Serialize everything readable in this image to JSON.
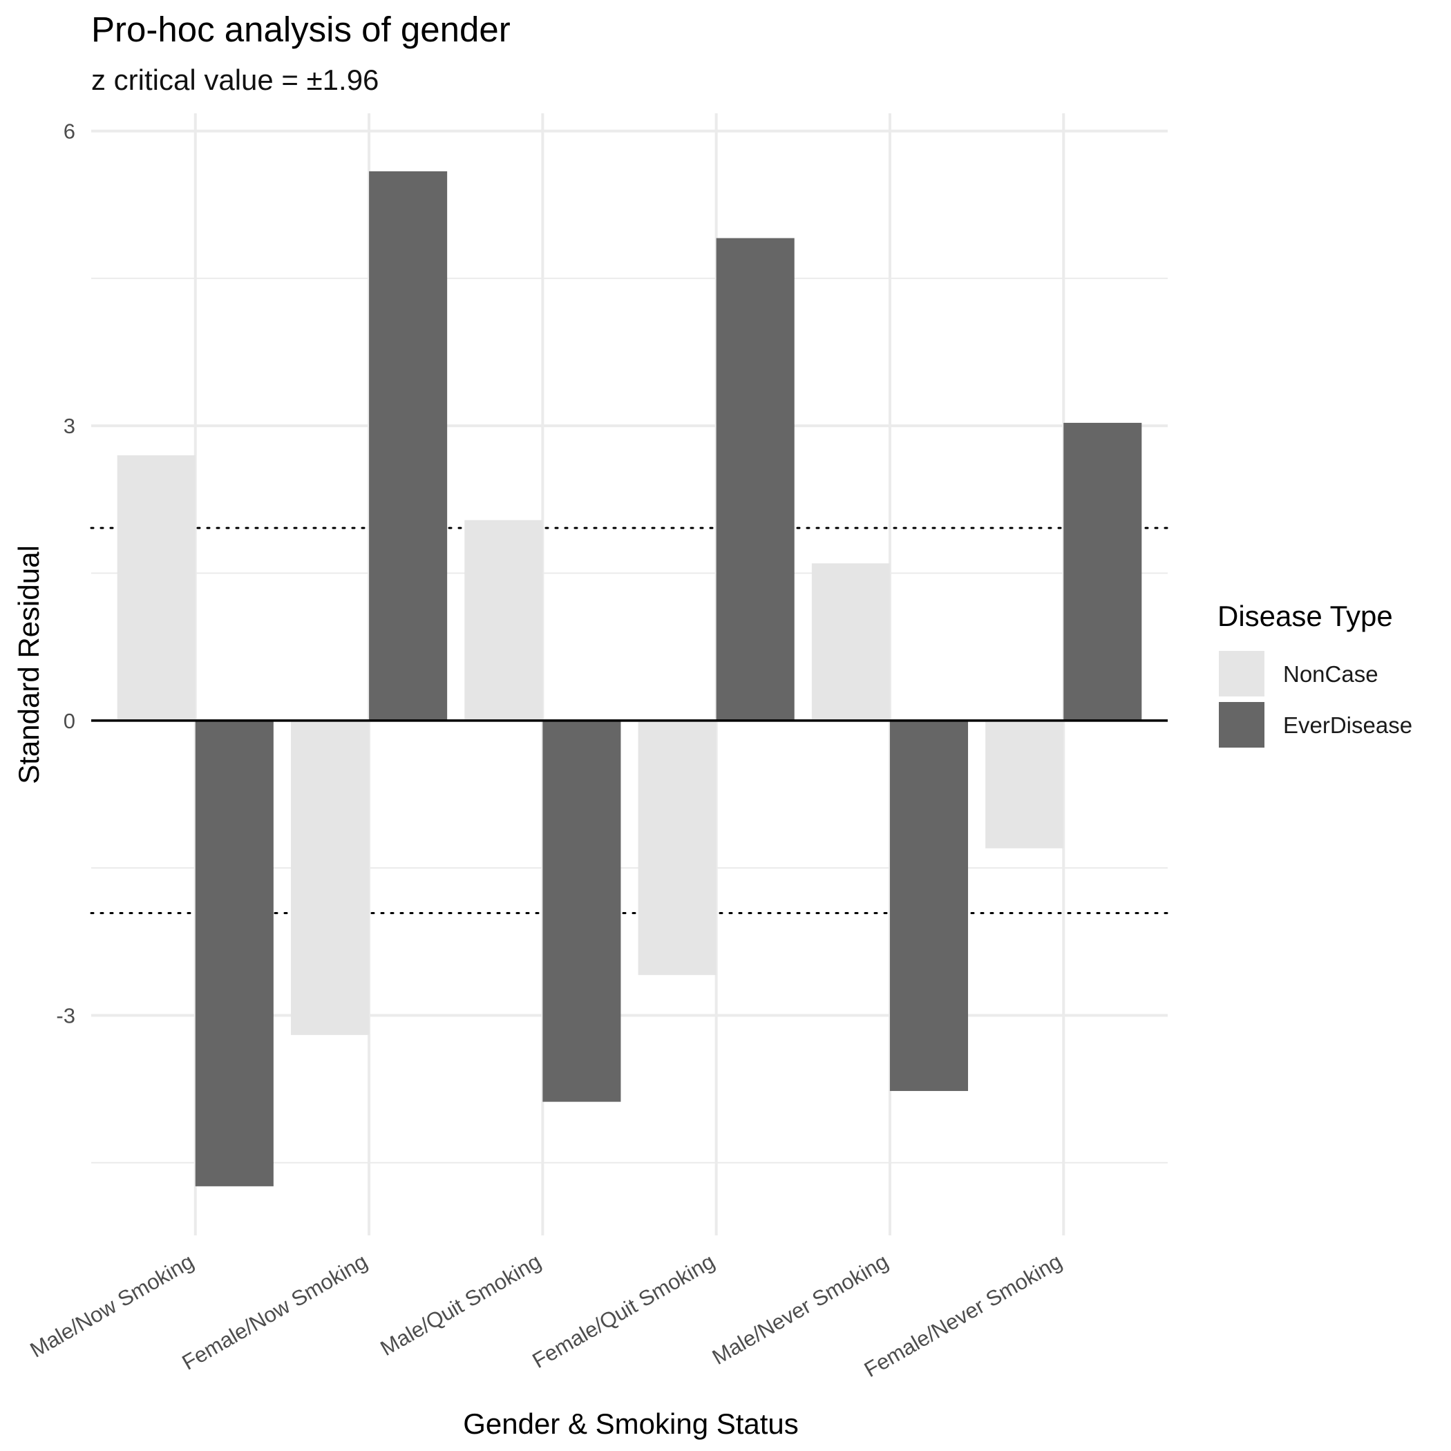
{
  "chart_data": {
    "type": "bar",
    "title": "Pro-hoc analysis of gender",
    "subtitle": "z critical value = ±1.96",
    "xlabel": "Gender & Smoking Status",
    "ylabel": "Standard Residual",
    "categories": [
      "Male/Now Smoking",
      "Female/Now Smoking",
      "Male/Quit Smoking",
      "Female/Quit Smoking",
      "Male/Never Smoking",
      "Female/Never Smoking"
    ],
    "series": [
      {
        "name": "NonCase",
        "color": "#e5e5e5",
        "values": [
          2.7,
          -3.2,
          2.04,
          -2.59,
          1.6,
          -1.3
        ]
      },
      {
        "name": "EverDisease",
        "color": "#666666",
        "values": [
          -4.74,
          5.59,
          -3.88,
          4.91,
          -3.77,
          3.03
        ]
      }
    ],
    "reference_lines": [
      1.96,
      -1.96
    ],
    "zero_line": 0,
    "yticks": [
      -3,
      0,
      3,
      6
    ],
    "ylim": [
      -5.24,
      6.18
    ],
    "grid": true,
    "legend": {
      "title": "Disease Type",
      "position": "right"
    }
  }
}
